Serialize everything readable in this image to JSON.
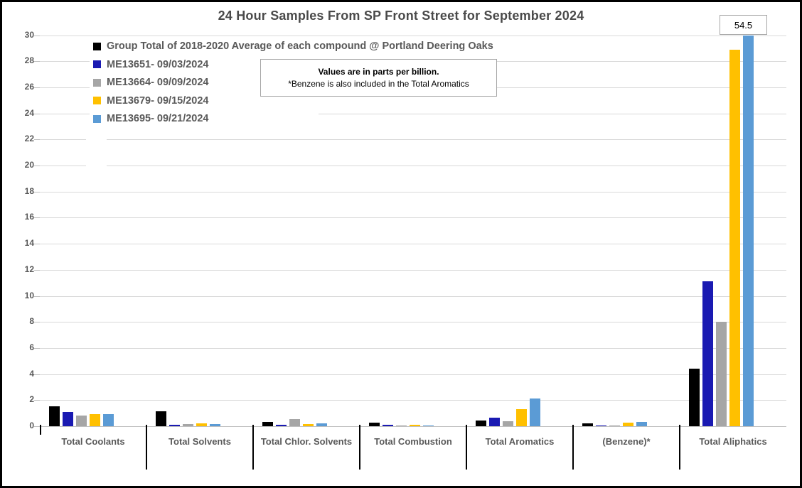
{
  "title": "24 Hour Samples From SP Front Street for September 2024",
  "annotation": {
    "line1": "Values are in parts per billion.",
    "line2": "*Benzene is also included in the Total Aromatics"
  },
  "callout": {
    "value": "54.5"
  },
  "colors": {
    "series_black": "#000000",
    "series_dark_blue": "#1a1ab2",
    "series_gray": "#a6a6a6",
    "series_yellow": "#ffc000",
    "series_light_blue": "#5b9bd5",
    "gridline": "#d9d9d9",
    "axis_text": "#595959",
    "title_text": "#4a4a4a"
  },
  "chart_data": {
    "type": "bar",
    "title": "24 Hour Samples From SP Front Street for September 2024",
    "categories": [
      "Total Coolants",
      "Total Solvents",
      "Total Chlor. Solvents",
      "Total Combustion",
      "Total Aromatics",
      "(Benzene)*",
      "Total Aliphatics"
    ],
    "series": [
      {
        "name": "Group Total of 2018-2020 Average of each compound @ Portland Deering Oaks",
        "color": "#000000",
        "values": [
          1.5,
          1.15,
          0.35,
          0.25,
          0.45,
          0.2,
          4.4
        ]
      },
      {
        "name": "ME13651- 09/03/2024",
        "color": "#1a1ab2",
        "values": [
          1.1,
          0.12,
          0.12,
          0.1,
          0.65,
          0.08,
          11.1
        ]
      },
      {
        "name": "ME13664- 09/09/2024",
        "color": "#a6a6a6",
        "values": [
          0.8,
          0.15,
          0.55,
          0.08,
          0.4,
          0.06,
          8.0
        ]
      },
      {
        "name": "ME13679- 09/15/2024",
        "color": "#ffc000",
        "values": [
          0.9,
          0.2,
          0.18,
          0.1,
          1.3,
          0.28,
          28.9
        ]
      },
      {
        "name": "ME13695- 09/21/2024",
        "color": "#5b9bd5",
        "values": [
          0.9,
          0.15,
          0.2,
          0.08,
          2.1,
          0.3,
          54.5
        ]
      }
    ],
    "ylabel": "",
    "xlabel": "",
    "ylim": [
      0,
      30
    ],
    "ytick_step": 2,
    "grid": true,
    "legend_position": "top-left",
    "notes": "Light blue Total Aliphatics bar (54.5 ppb) is clipped at axis max 30; labeled 54.5 in callout box.",
    "units": "parts per billion"
  }
}
